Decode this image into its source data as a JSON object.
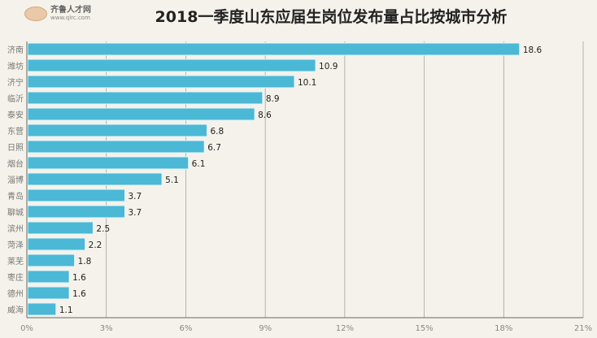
{
  "logo": {
    "name": "齐鲁人才网",
    "url": "www.qlrc.com"
  },
  "chart_data": {
    "type": "bar",
    "orientation": "horizontal",
    "title": "2018一季度山东应届生岗位发布量占比按城市分析",
    "categories": [
      "济南",
      "潍坊",
      "济宁",
      "临沂",
      "泰安",
      "东营",
      "日照",
      "烟台",
      "淄博",
      "青岛",
      "聊城",
      "滨州",
      "菏泽",
      "莱芜",
      "枣庄",
      "德州",
      "威海"
    ],
    "values": [
      18.6,
      10.9,
      10.1,
      8.9,
      8.6,
      6.8,
      6.7,
      6.1,
      5.1,
      3.7,
      3.7,
      2.5,
      2.2,
      1.8,
      1.6,
      1.6,
      1.1
    ],
    "xlim": [
      0,
      21
    ],
    "xticks": [
      "0%",
      "3%",
      "6%",
      "9%",
      "12%",
      "15%",
      "18%",
      "21%"
    ],
    "grid": true,
    "bar_color": "#4bb8d6"
  }
}
